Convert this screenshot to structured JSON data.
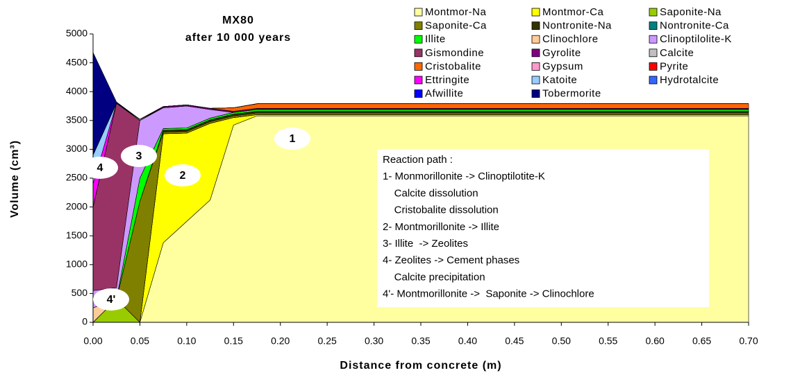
{
  "chart_data": {
    "type": "stacked_area",
    "title": "MX80",
    "subtitle": "after 10 000 years",
    "x_label": "Distance from concrete (m)",
    "y_label": "Volume (cm³)",
    "x": [
      0,
      0.025,
      0.05,
      0.075,
      0.1,
      0.125,
      0.15,
      0.175,
      0.7
    ],
    "series": [
      {
        "name": "Montmor-Na",
        "color": "#ffffa0",
        "values": [
          0,
          0,
          0,
          1380,
          1750,
          2120,
          3420,
          3580,
          3580
        ]
      },
      {
        "name": "Montmor-Ca",
        "color": "#ffff00",
        "values": [
          0,
          0,
          0,
          1890,
          1530,
          1330,
          130,
          20,
          20
        ]
      },
      {
        "name": "Saponite-Na",
        "color": "#99cc00",
        "values": [
          0,
          400,
          0,
          0,
          0,
          0,
          0,
          0,
          0
        ]
      },
      {
        "name": "Saponite-Ca",
        "color": "#808000",
        "values": [
          0,
          0,
          2100,
          30,
          30,
          30,
          30,
          30,
          30
        ]
      },
      {
        "name": "Nontronite-Na",
        "color": "#333300",
        "values": [
          0,
          0,
          0,
          30,
          30,
          30,
          30,
          30,
          30
        ]
      },
      {
        "name": "Nontronite-Ca",
        "color": "#008080",
        "values": [
          0,
          0,
          0,
          0,
          0,
          0,
          0,
          0,
          0
        ]
      },
      {
        "name": "Illite",
        "color": "#00ff00",
        "values": [
          0,
          0,
          400,
          30,
          30,
          30,
          30,
          30,
          30
        ]
      },
      {
        "name": "Clinochlore",
        "color": "#ffcc99",
        "values": [
          250,
          0,
          0,
          0,
          0,
          0,
          0,
          0,
          0
        ]
      },
      {
        "name": "Clinoptilolite-K",
        "color": "#cc99ff",
        "values": [
          300,
          200,
          1000,
          360,
          380,
          150,
          0,
          0,
          0
        ]
      },
      {
        "name": "Gismondine",
        "color": "#993366",
        "values": [
          1450,
          3200,
          0,
          0,
          0,
          0,
          0,
          0,
          0
        ]
      },
      {
        "name": "Gyrolite",
        "color": "#800080",
        "values": [
          0,
          0,
          0,
          20,
          20,
          20,
          20,
          20,
          20
        ]
      },
      {
        "name": "Calcite",
        "color": "#c0c0c0",
        "values": [
          0,
          0,
          20,
          0,
          0,
          0,
          0,
          0,
          0
        ]
      },
      {
        "name": "Cristobalite",
        "color": "#ff6600",
        "values": [
          0,
          0,
          0,
          0,
          0,
          0,
          60,
          80,
          80
        ]
      },
      {
        "name": "Gypsum",
        "color": "#ff99cc",
        "values": [
          0,
          0,
          0,
          0,
          0,
          0,
          0,
          0,
          0
        ]
      },
      {
        "name": "Pyrite",
        "color": "#ff0000",
        "values": [
          0,
          0,
          0,
          0,
          0,
          0,
          0,
          0,
          0
        ]
      },
      {
        "name": "Ettringite",
        "color": "#ff00ff",
        "values": [
          400,
          0,
          0,
          0,
          0,
          0,
          0,
          0,
          0
        ]
      },
      {
        "name": "Katoite",
        "color": "#99ccff",
        "values": [
          500,
          0,
          0,
          0,
          0,
          0,
          0,
          0,
          0
        ]
      },
      {
        "name": "Hydrotalcite",
        "color": "#3366ff",
        "values": [
          0,
          0,
          0,
          0,
          0,
          0,
          0,
          0,
          0
        ]
      },
      {
        "name": "Afwillite",
        "color": "#0000ff",
        "values": [
          0,
          0,
          0,
          0,
          0,
          0,
          0,
          0,
          0
        ]
      },
      {
        "name": "Tobermorite",
        "color": "#000080",
        "values": [
          1780,
          20,
          0,
          0,
          0,
          0,
          0,
          0,
          0
        ]
      }
    ],
    "xlim": [
      0,
      0.7
    ],
    "xticks": [
      {
        "value": 0,
        "label": "0.00"
      },
      {
        "value": 0.05,
        "label": "0.05"
      },
      {
        "value": 0.1,
        "label": "0.10"
      },
      {
        "value": 0.15,
        "label": "0.15"
      },
      {
        "value": 0.2,
        "label": "0.20"
      },
      {
        "value": 0.25,
        "label": "0.25"
      },
      {
        "value": 0.3,
        "label": "0.30"
      },
      {
        "value": 0.35,
        "label": "0.35"
      },
      {
        "value": 0.4,
        "label": "0.40"
      },
      {
        "value": 0.45,
        "label": "0.45"
      },
      {
        "value": 0.5,
        "label": "0.50"
      },
      {
        "value": 0.55,
        "label": "0.55"
      },
      {
        "value": 0.6,
        "label": "0.60"
      },
      {
        "value": 0.65,
        "label": "0.65"
      },
      {
        "value": 0.7,
        "label": "0.70"
      }
    ],
    "ylim": [
      0,
      5000
    ],
    "yticks": [
      0,
      500,
      1000,
      1500,
      2000,
      2500,
      3000,
      3500,
      4000,
      4500,
      5000
    ],
    "grid": false,
    "annotations": [
      "1",
      "2",
      "3",
      "4",
      "4'"
    ],
    "reaction_path": [
      "Reaction path :",
      "1- Monmorillonite -> Clinoptilotite-K",
      "    Calcite dissolution",
      "    Cristobalite dissolution",
      "2- Montmorillonite -> Illite",
      "3- Illite  -> Zeolites",
      "4- Zeolites -> Cement phases",
      "    Calcite precipitation",
      "4'- Montmorillonite ->  Saponite -> Clinochlore"
    ]
  }
}
